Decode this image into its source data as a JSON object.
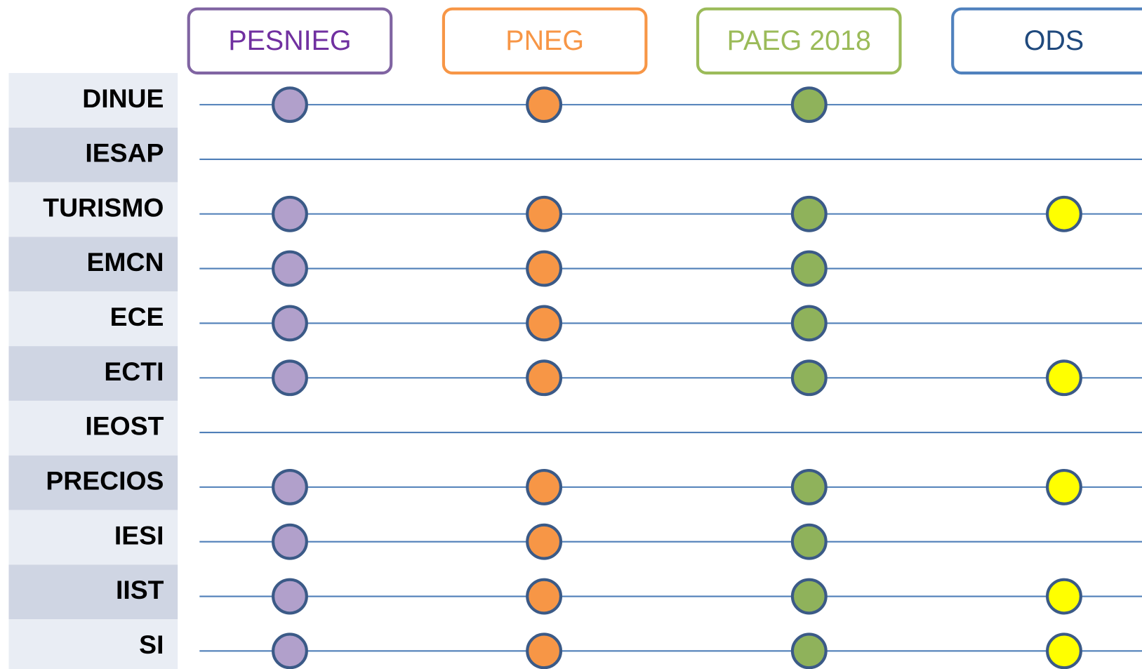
{
  "columns": [
    {
      "label": "PESNIEG",
      "color": "#7030a0",
      "border": "#8064a2",
      "dot": "#b1a0cb"
    },
    {
      "label": "PNEG",
      "color": "#f79646",
      "border": "#f79646",
      "dot": "#f79646"
    },
    {
      "label": "PAEG 2018",
      "color": "#9bbb59",
      "border": "#9bbb59",
      "dot": "#8fb25b"
    },
    {
      "label": "ODS",
      "color": "#1f497d",
      "border": "#4f81bd",
      "dot": "#ffff00"
    }
  ],
  "rows": [
    {
      "label": "DINUE",
      "marks": [
        true,
        true,
        true,
        false
      ]
    },
    {
      "label": "IESAP",
      "marks": [
        false,
        false,
        false,
        false
      ]
    },
    {
      "label": "TURISMO",
      "marks": [
        true,
        true,
        true,
        true
      ]
    },
    {
      "label": "EMCN",
      "marks": [
        true,
        true,
        true,
        false
      ]
    },
    {
      "label": "ECE",
      "marks": [
        true,
        true,
        true,
        false
      ]
    },
    {
      "label": "ECTI",
      "marks": [
        true,
        true,
        true,
        true
      ]
    },
    {
      "label": "IEOST",
      "marks": [
        false,
        false,
        false,
        false
      ]
    },
    {
      "label": "PRECIOS",
      "marks": [
        true,
        true,
        true,
        true
      ]
    },
    {
      "label": "IESI",
      "marks": [
        true,
        true,
        true,
        false
      ]
    },
    {
      "label": "IIST",
      "marks": [
        true,
        true,
        true,
        true
      ]
    },
    {
      "label": "SI",
      "marks": [
        true,
        true,
        true,
        true
      ]
    }
  ]
}
